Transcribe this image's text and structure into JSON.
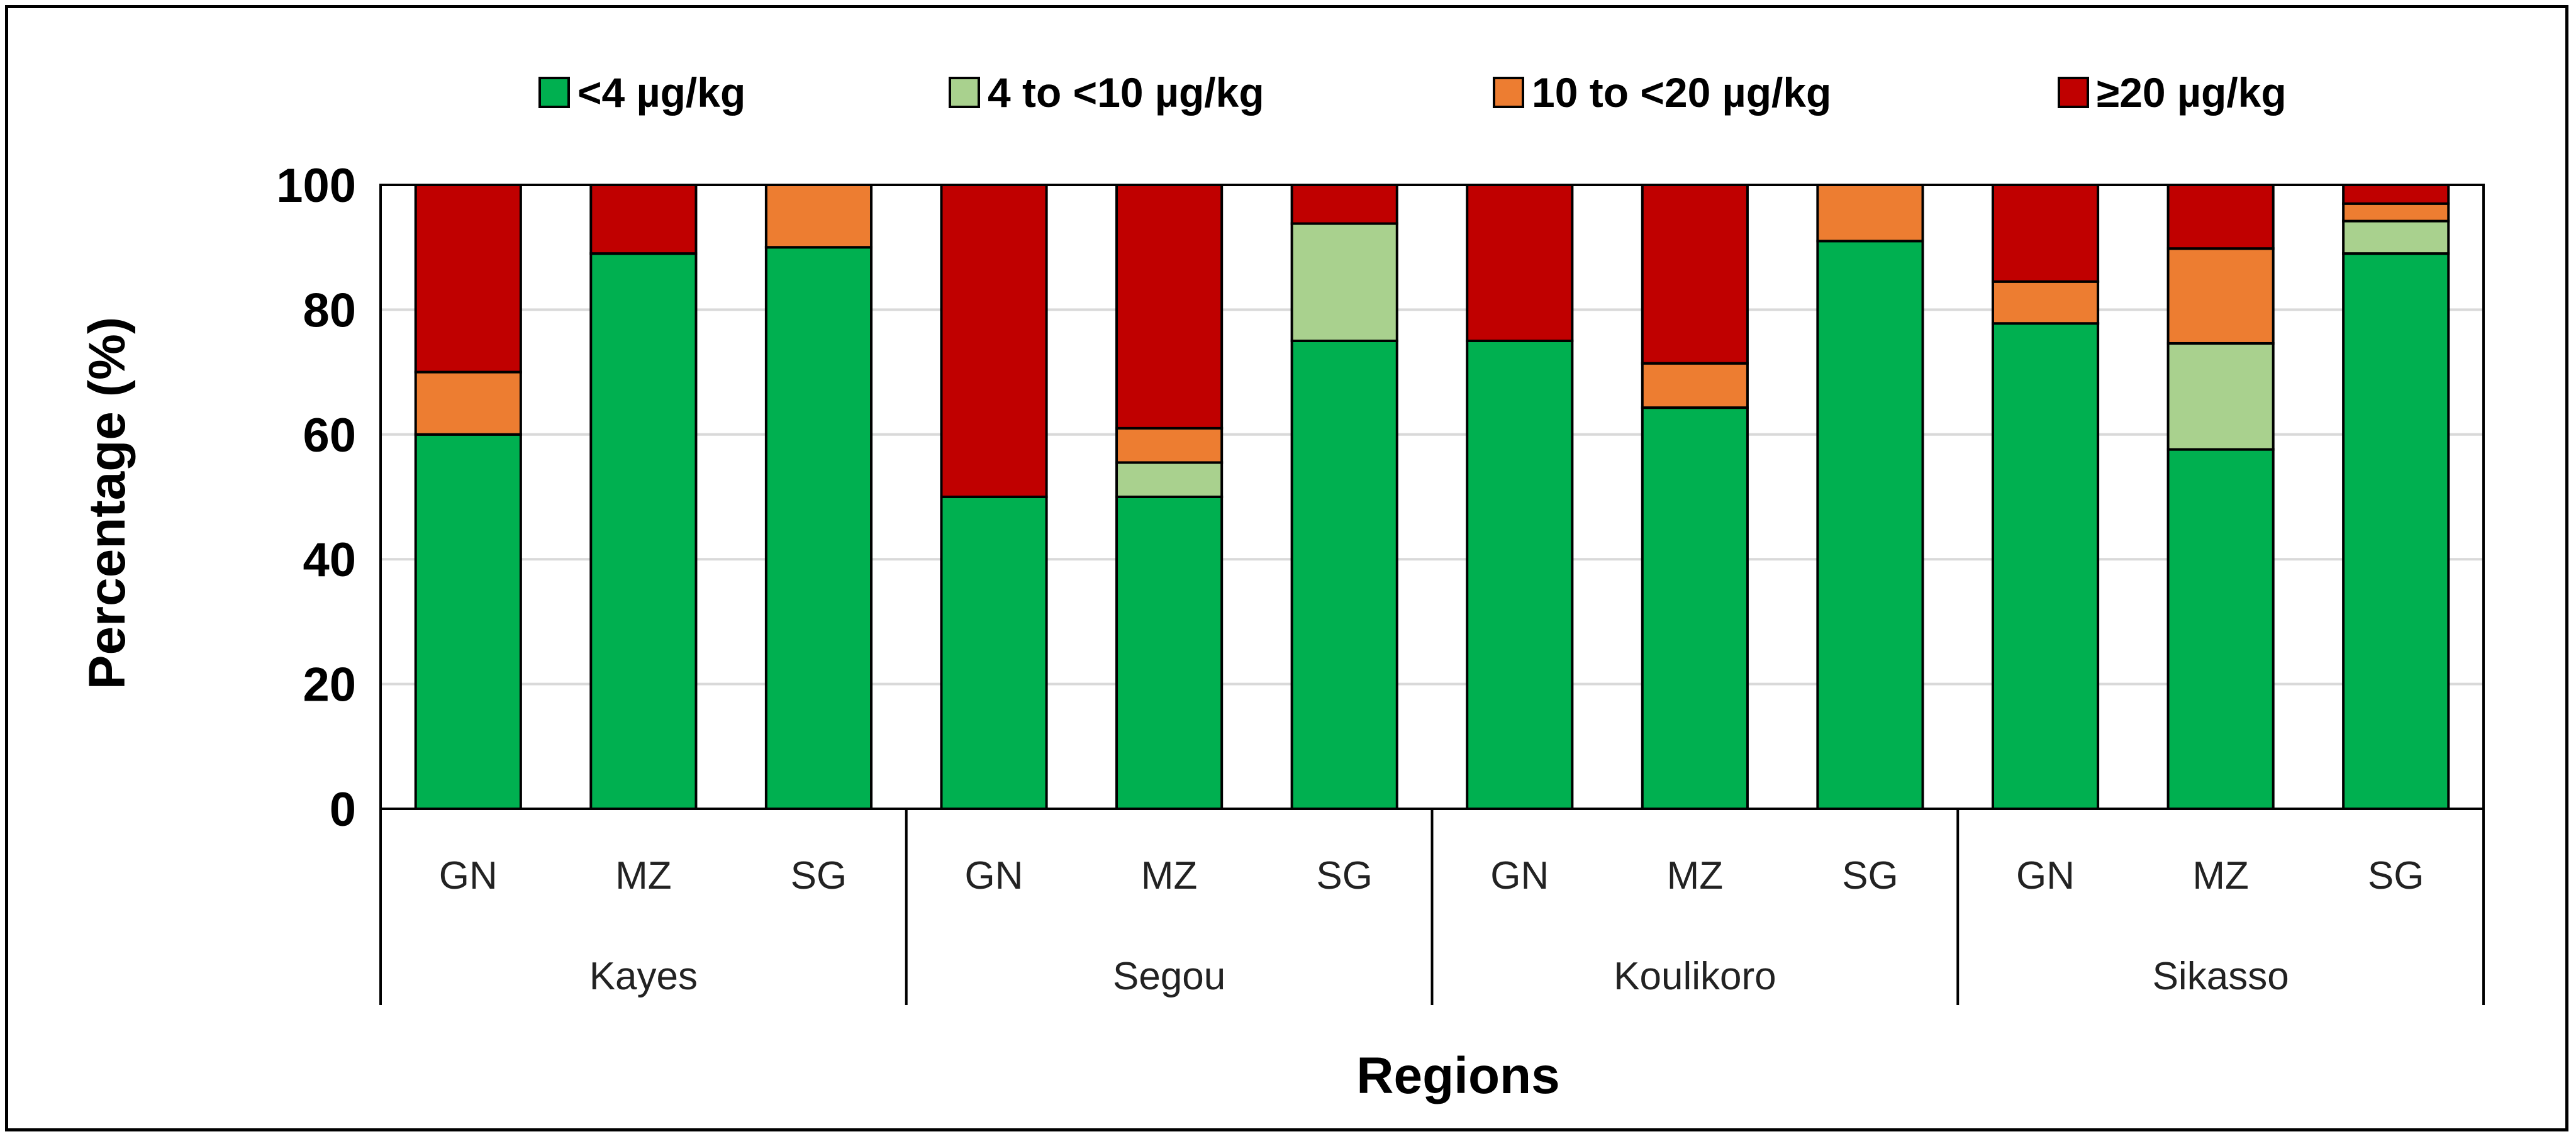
{
  "chart_data": {
    "type": "bar",
    "stacked": true,
    "title": "",
    "xlabel": "Regions",
    "ylabel": "Percentage (%)",
    "ylim": [
      0,
      100
    ],
    "yticks": [
      0,
      20,
      40,
      60,
      80,
      100
    ],
    "grid": true,
    "legend_position": "top",
    "groups": [
      {
        "name": "Kayes",
        "categories": [
          "GN",
          "MZ",
          "SG"
        ]
      },
      {
        "name": "Segou",
        "categories": [
          "GN",
          "MZ",
          "SG"
        ]
      },
      {
        "name": "Koulikoro",
        "categories": [
          "GN",
          "MZ",
          "SG"
        ]
      },
      {
        "name": "Sikasso",
        "categories": [
          "GN",
          "MZ",
          "SG"
        ]
      }
    ],
    "series": [
      {
        "name": "<4 µg/kg",
        "color": "#00b050",
        "values": [
          60,
          89,
          90,
          50,
          50,
          75,
          75,
          64.3,
          91,
          77.8,
          57.6,
          89
        ]
      },
      {
        "name": "4 to <10 µg/kg",
        "color": "#a9d18e",
        "values": [
          0,
          0,
          0,
          0,
          5.5,
          18.8,
          0,
          0,
          0,
          0,
          17.0,
          5.2
        ]
      },
      {
        "name": "10 to <20 µg/kg",
        "color": "#ed7d31",
        "values": [
          10,
          0,
          10,
          0,
          5.5,
          0,
          0,
          7.1,
          9,
          6.7,
          15.2,
          2.8
        ]
      },
      {
        "name": "≥20 µg/kg",
        "color": "#c00000",
        "values": [
          30,
          11,
          0,
          50,
          39,
          6.2,
          25,
          28.6,
          0,
          15.5,
          10.2,
          3
        ]
      }
    ]
  }
}
